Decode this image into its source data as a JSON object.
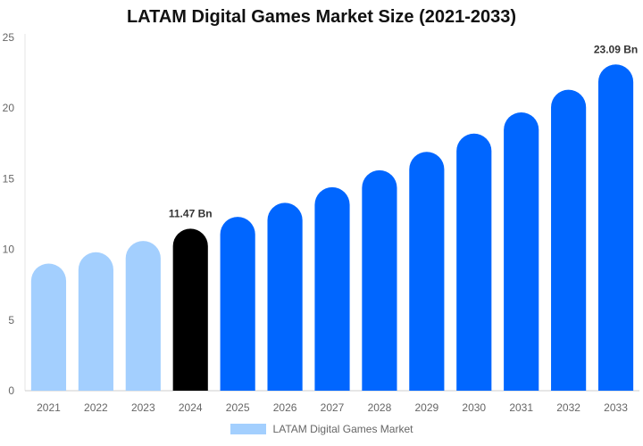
{
  "chart_data": {
    "type": "bar",
    "title": "LATAM Digital Games Market Size (2021-2033)",
    "categories": [
      "2021",
      "2022",
      "2023",
      "2024",
      "2025",
      "2026",
      "2027",
      "2028",
      "2029",
      "2030",
      "2031",
      "2032",
      "2033"
    ],
    "series": [
      {
        "name": "LATAM Digital Games Market",
        "values": [
          9.0,
          9.8,
          10.6,
          11.47,
          12.3,
          13.3,
          14.4,
          15.6,
          16.9,
          18.2,
          19.7,
          21.3,
          23.09
        ]
      }
    ],
    "data_labels": [
      {
        "category": "2024",
        "text": "11.47 Bn"
      },
      {
        "category": "2033",
        "text": "23.09 Bn"
      }
    ],
    "bar_colors": {
      "historical": "#a3cffe",
      "current": "#000000",
      "forecast": "#0066ff"
    },
    "historical_categories": [
      "2021",
      "2022",
      "2023"
    ],
    "current_category": "2024",
    "y_ticks": [
      0,
      5,
      10,
      15,
      20,
      25
    ],
    "ylim": [
      0,
      25
    ],
    "xlabel": "",
    "ylabel": "",
    "grid": false,
    "legend": {
      "position": "bottom",
      "label": "LATAM Digital Games Market",
      "color": "#a3cffe"
    }
  }
}
